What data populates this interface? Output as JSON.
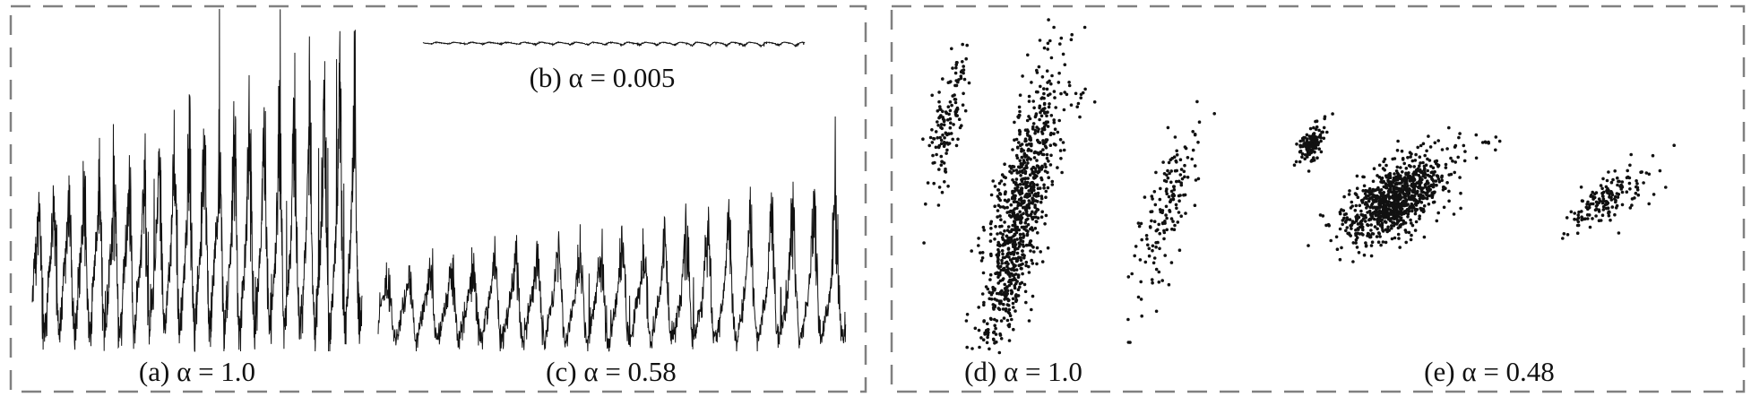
{
  "colors": {
    "ink": "#111111",
    "frame": "#808080",
    "background": "#ffffff"
  },
  "captions": {
    "a": "(a) α = 1.0",
    "b": "(b) α = 0.005",
    "c": "(c) α = 0.58",
    "d": "(d) α = 1.0",
    "e": "(e) α = 0.48"
  },
  "chart_data": [
    {
      "id": "a",
      "type": "line",
      "title": "(a) α = 1.0",
      "xlabel": "",
      "ylabel": "",
      "grid": false,
      "axes_visible": false,
      "alpha": 1.0,
      "series": [
        {
          "pattern": "noisy spiky periodic time series",
          "cycles": 22,
          "relative_amplitude": 1.0
        }
      ]
    },
    {
      "id": "b",
      "type": "line",
      "title": "(b) α = 0.005",
      "xlabel": "",
      "ylabel": "",
      "grid": false,
      "axes_visible": false,
      "alpha": 0.005,
      "series": [
        {
          "pattern": "nearly flat series",
          "relative_amplitude": 0.005
        }
      ]
    },
    {
      "id": "c",
      "type": "line",
      "title": "(c) α = 0.58",
      "xlabel": "",
      "ylabel": "",
      "grid": false,
      "axes_visible": false,
      "alpha": 0.58,
      "series": [
        {
          "pattern": "noisy spiky periodic time series",
          "cycles": 22,
          "relative_amplitude": 0.58
        }
      ]
    },
    {
      "id": "d",
      "type": "scatter",
      "title": "(d) α = 1.0",
      "xlabel": "",
      "ylabel": "",
      "grid": false,
      "axes_visible": false,
      "alpha": 1.0,
      "clusters": [
        {
          "x": 0.1,
          "y": 0.7,
          "sx": 0.035,
          "sy": 0.12,
          "rho": 0.7,
          "n": 140
        },
        {
          "x": 0.32,
          "y": 0.42,
          "sx": 0.06,
          "sy": 0.22,
          "rho": 0.75,
          "n": 900
        },
        {
          "x": 0.5,
          "y": 0.78,
          "sx": 0.02,
          "sy": 0.03,
          "rho": 0.3,
          "n": 10
        },
        {
          "x": 0.78,
          "y": 0.45,
          "sx": 0.05,
          "sy": 0.14,
          "rho": 0.75,
          "n": 160
        }
      ]
    },
    {
      "id": "e",
      "type": "scatter",
      "title": "(e) α = 0.48",
      "xlabel": "",
      "ylabel": "",
      "grid": false,
      "axes_visible": false,
      "alpha": 0.48,
      "clusters": [
        {
          "x": 0.07,
          "y": 0.7,
          "sx": 0.02,
          "sy": 0.05,
          "rho": 0.6,
          "n": 140
        },
        {
          "x": 0.3,
          "y": 0.45,
          "sx": 0.07,
          "sy": 0.1,
          "rho": 0.6,
          "n": 900
        },
        {
          "x": 0.55,
          "y": 0.73,
          "sx": 0.015,
          "sy": 0.02,
          "rho": 0.3,
          "n": 8
        },
        {
          "x": 0.87,
          "y": 0.45,
          "sx": 0.06,
          "sy": 0.08,
          "rho": 0.7,
          "n": 160
        }
      ]
    }
  ]
}
